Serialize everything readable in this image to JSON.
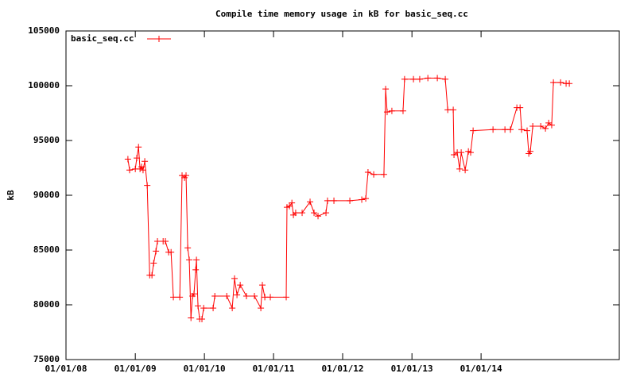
{
  "chart_data": {
    "type": "line",
    "title": "Compile time memory usage in kB for basic_seq.cc",
    "ylabel": "kB",
    "x": [
      "2008-11-23",
      "2008-12-02",
      "2009-01-01",
      "2009-01-09",
      "2009-01-18",
      "2009-01-26",
      "2009-02-03",
      "2009-02-11",
      "2009-02-20",
      "2009-03-05",
      "2009-03-18",
      "2009-03-30",
      "2009-04-08",
      "2009-04-20",
      "2009-04-28",
      "2009-05-28",
      "2009-06-09",
      "2009-06-26",
      "2009-07-09",
      "2009-07-21",
      "2009-08-24",
      "2009-09-05",
      "2009-09-18",
      "2009-09-26",
      "2009-10-05",
      "2009-10-13",
      "2009-10-22",
      "2009-10-30",
      "2009-11-07",
      "2009-11-16",
      "2009-11-20",
      "2009-11-28",
      "2009-12-07",
      "2009-12-19",
      "2009-12-28",
      "2010-02-16",
      "2010-02-25",
      "2010-04-29",
      "2010-05-28",
      "2010-06-09",
      "2010-06-22",
      "2010-07-09",
      "2010-08-11",
      "2010-09-22",
      "2010-10-26",
      "2010-11-03",
      "2010-11-16",
      "2010-12-15",
      "2011-03-09",
      "2011-03-13",
      "2011-03-26",
      "2011-04-08",
      "2011-04-16",
      "2011-04-28",
      "2011-06-01",
      "2011-07-13",
      "2011-08-03",
      "2011-08-24",
      "2011-10-05",
      "2011-10-13",
      "2011-11-16",
      "2012-02-08",
      "2012-04-11",
      "2012-05-02",
      "2012-05-14",
      "2012-06-13",
      "2012-08-06",
      "2012-08-15",
      "2012-08-23",
      "2012-09-17",
      "2012-11-15",
      "2012-11-23",
      "2013-01-09",
      "2013-02-11",
      "2013-03-26",
      "2013-05-15",
      "2013-06-26",
      "2013-07-09",
      "2013-08-07",
      "2013-08-11",
      "2013-08-28",
      "2013-09-10",
      "2013-09-18",
      "2013-10-09",
      "2013-10-26",
      "2013-11-07",
      "2013-11-20",
      "2014-03-05",
      "2014-05-07",
      "2014-06-05",
      "2014-07-09",
      "2014-07-26",
      "2014-08-03",
      "2014-09-01",
      "2014-09-10",
      "2014-09-18",
      "2014-10-01",
      "2014-11-12",
      "2014-12-07",
      "2014-12-24",
      "2015-01-09",
      "2015-01-18",
      "2015-02-25",
      "2015-03-26",
      "2015-04-12"
    ],
    "series": [
      {
        "name": "basic_seq.cc",
        "color": "#ff0000",
        "values": [
          93300,
          92300,
          92400,
          93400,
          94400,
          92400,
          92600,
          92300,
          93100,
          90900,
          82700,
          82700,
          83800,
          84900,
          85800,
          85800,
          85800,
          84800,
          84800,
          80700,
          80700,
          91800,
          91600,
          91800,
          85200,
          84100,
          78800,
          80800,
          81000,
          83200,
          84100,
          79900,
          78700,
          78700,
          79700,
          79700,
          80800,
          80800,
          79700,
          82400,
          80900,
          81800,
          80800,
          80800,
          79700,
          81800,
          80700,
          80700,
          80700,
          88900,
          89000,
          89300,
          88200,
          88400,
          88400,
          89400,
          88400,
          88100,
          88400,
          89500,
          89500,
          89500,
          89600,
          89700,
          92100,
          91900,
          91900,
          99700,
          97600,
          97700,
          97700,
          100600,
          100600,
          100600,
          100700,
          100700,
          100600,
          97800,
          97800,
          93700,
          93900,
          92400,
          93900,
          92300,
          94000,
          93900,
          95900,
          96000,
          96000,
          96000,
          98000,
          98000,
          96000,
          95900,
          93800,
          94000,
          96300,
          96300,
          96100,
          96600,
          96400,
          100300,
          100300,
          100200,
          100200
        ]
      }
    ],
    "xlim": [
      "2008-01-01",
      "2016-01-01"
    ],
    "xticks": [
      {
        "value": "2008-01-01",
        "label": "01/01/08"
      },
      {
        "value": "2009-01-01",
        "label": "01/01/09"
      },
      {
        "value": "2010-01-01",
        "label": "01/01/10"
      },
      {
        "value": "2011-01-01",
        "label": "01/01/11"
      },
      {
        "value": "2012-01-01",
        "label": "01/01/12"
      },
      {
        "value": "2013-01-01",
        "label": "01/01/13"
      },
      {
        "value": "2014-01-01",
        "label": "01/01/14"
      }
    ],
    "ylim": [
      75000,
      105000
    ],
    "yticks": [
      75000,
      80000,
      85000,
      90000,
      95000,
      100000,
      105000
    ],
    "legend": "top-left",
    "grid": false
  }
}
